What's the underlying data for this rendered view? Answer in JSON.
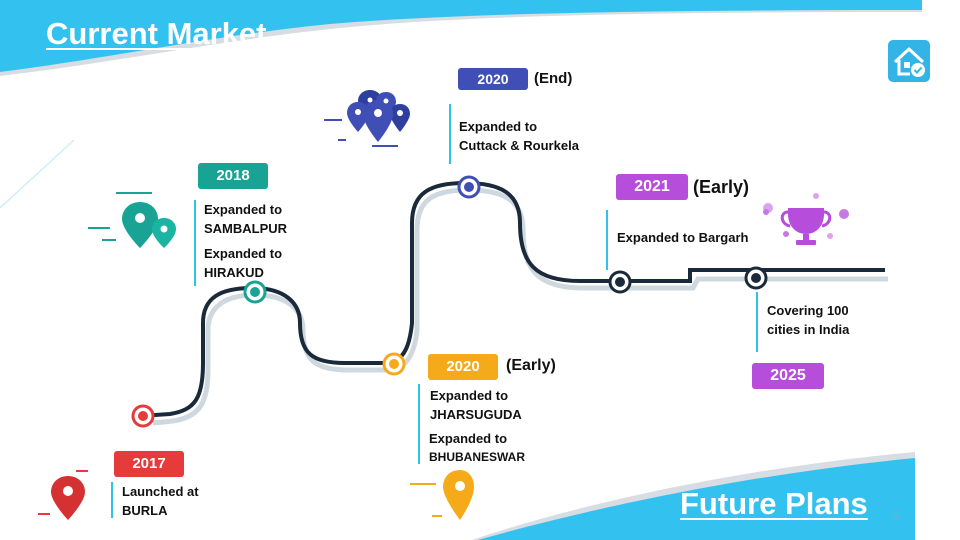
{
  "slide": {
    "title": "Current Market",
    "footer_title": "Future Plans",
    "page_number": "5"
  },
  "colors": {
    "accent_blue": "#33c2f0",
    "red": "#e53b3b",
    "teal": "#18a394",
    "navy": "#3f4fb6",
    "orange": "#f5aa1a",
    "purple": "#b64ddb",
    "road": "#1b2a3b",
    "marker_line": "#2fc3e6"
  },
  "timeline": [
    {
      "id": "2017",
      "year": "2017",
      "note": "",
      "lines": [
        "Launched at",
        "BURLA"
      ]
    },
    {
      "id": "2018",
      "year": "2018",
      "note": "",
      "lines": [
        "Expanded to",
        "SAMBALPUR",
        "Expanded to",
        "HIRAKUD"
      ]
    },
    {
      "id": "2020-early",
      "year": "2020",
      "note": "(Early)",
      "lines": [
        "Expanded to",
        "JHARSUGUDA",
        "Expanded to",
        "BHUBANESWAR"
      ]
    },
    {
      "id": "2020-end",
      "year": "2020",
      "note": "(End)",
      "lines": [
        "Expanded to",
        "Cuttack & Rourkela"
      ]
    },
    {
      "id": "2021",
      "year": "2021",
      "note": "(Early)",
      "lines": [
        "Expanded to Bargarh"
      ]
    },
    {
      "id": "2025",
      "year": "2025",
      "note": "",
      "lines": [
        "Covering 100",
        "cities in India"
      ]
    }
  ],
  "icons": {
    "home": "home-check-icon",
    "pin_red": "map-pin-icon",
    "pins_teal": "map-pins-icon",
    "pins_navy": "map-pins-cluster-icon",
    "pin_orange": "map-pin-icon",
    "trophy": "trophy-icon"
  }
}
